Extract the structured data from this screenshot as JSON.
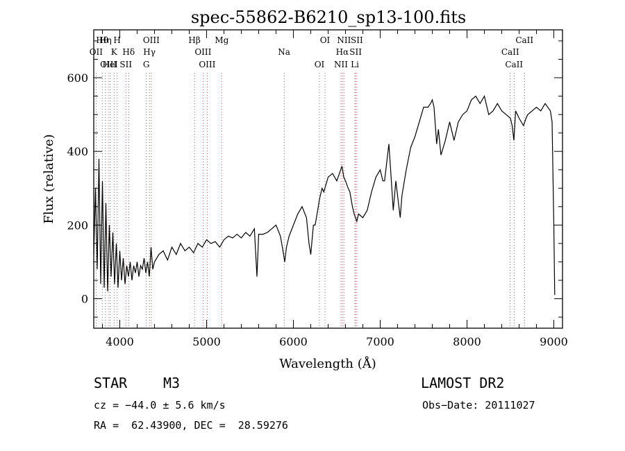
{
  "chart_data": {
    "type": "line",
    "title": "spec-55862-B6210_sp13-100.fits",
    "xlabel": "Wavelength (Å)",
    "ylabel": "Flux (relative)",
    "xlim": [
      3700,
      9100
    ],
    "ylim": [
      -80,
      730
    ],
    "xticks": [
      4000,
      5000,
      6000,
      7000,
      8000,
      9000
    ],
    "yticks": [
      0,
      200,
      400,
      600
    ],
    "grid": false,
    "series": [
      {
        "color": "#000000",
        "x": [
          3700,
          3720,
          3740,
          3760,
          3780,
          3800,
          3820,
          3840,
          3860,
          3880,
          3900,
          3920,
          3940,
          3960,
          3980,
          4000,
          4020,
          4040,
          4060,
          4080,
          4100,
          4120,
          4140,
          4160,
          4180,
          4200,
          4220,
          4240,
          4260,
          4280,
          4300,
          4320,
          4340,
          4360,
          4380,
          4400,
          4450,
          4500,
          4550,
          4600,
          4650,
          4700,
          4750,
          4800,
          4850,
          4900,
          4950,
          5000,
          5050,
          5100,
          5150,
          5200,
          5250,
          5300,
          5350,
          5400,
          5450,
          5500,
          5550,
          5580,
          5600,
          5650,
          5700,
          5750,
          5800,
          5850,
          5880,
          5900,
          5920,
          5950,
          6000,
          6050,
          6100,
          6150,
          6180,
          6200,
          6230,
          6250,
          6280,
          6300,
          6330,
          6350,
          6400,
          6450,
          6500,
          6530,
          6560,
          6580,
          6600,
          6630,
          6650,
          6680,
          6700,
          6730,
          6750,
          6800,
          6850,
          6900,
          6950,
          7000,
          7030,
          7050,
          7080,
          7100,
          7120,
          7150,
          7180,
          7200,
          7230,
          7250,
          7300,
          7350,
          7400,
          7450,
          7500,
          7550,
          7580,
          7600,
          7620,
          7650,
          7670,
          7700,
          7750,
          7800,
          7850,
          7900,
          7950,
          8000,
          8050,
          8100,
          8150,
          8200,
          8250,
          8300,
          8350,
          8400,
          8450,
          8500,
          8520,
          8540,
          8560,
          8600,
          8650,
          8680,
          8700,
          8750,
          8800,
          8850,
          8900,
          8930,
          8960,
          8980,
          9000,
          9010
        ],
        "values": [
          120,
          300,
          80,
          380,
          40,
          320,
          30,
          260,
          20,
          200,
          60,
          180,
          40,
          150,
          30,
          130,
          50,
          110,
          40,
          90,
          60,
          100,
          50,
          90,
          70,
          100,
          60,
          90,
          80,
          110,
          70,
          100,
          60,
          140,
          80,
          100,
          120,
          130,
          105,
          140,
          120,
          150,
          130,
          140,
          125,
          150,
          140,
          160,
          150,
          155,
          140,
          160,
          170,
          165,
          175,
          165,
          180,
          170,
          190,
          60,
          175,
          175,
          180,
          190,
          200,
          170,
          130,
          100,
          140,
          170,
          200,
          230,
          250,
          220,
          150,
          120,
          200,
          200,
          240,
          270,
          300,
          290,
          330,
          340,
          320,
          340,
          360,
          330,
          320,
          300,
          290,
          250,
          230,
          210,
          230,
          220,
          240,
          290,
          330,
          350,
          320,
          320,
          380,
          420,
          350,
          240,
          320,
          280,
          220,
          280,
          350,
          410,
          440,
          480,
          520,
          520,
          530,
          540,
          520,
          420,
          460,
          390,
          430,
          480,
          430,
          480,
          500,
          510,
          540,
          550,
          530,
          550,
          500,
          510,
          530,
          510,
          500,
          490,
          470,
          430,
          510,
          490,
          470,
          490,
          500,
          510,
          520,
          510,
          530,
          520,
          510,
          480,
          200,
          10
        ]
      }
    ],
    "lines": [
      {
        "name": "Hθ",
        "wl": 3798
      },
      {
        "name": "OII",
        "wl": 3727
      },
      {
        "name": "OIII",
        "wl": 3869
      },
      {
        "name": "Hη",
        "wl": 3835
      },
      {
        "name": "K",
        "wl": 3934
      },
      {
        "name": "HeI",
        "wl": 3889
      },
      {
        "name": "H",
        "wl": 3969
      },
      {
        "name": "Hδ",
        "wl": 4102
      },
      {
        "name": "SII",
        "wl": 4070
      },
      {
        "name": "OIII",
        "wl": 4363
      },
      {
        "name": "Hγ",
        "wl": 4341
      },
      {
        "name": "G",
        "wl": 4305
      },
      {
        "name": "Hβ",
        "wl": 4861
      },
      {
        "name": "OIII",
        "wl": 4959
      },
      {
        "name": "OIII",
        "wl": 5007
      },
      {
        "name": "Mg",
        "wl": 5175
      },
      {
        "name": "Na",
        "wl": 5893
      },
      {
        "name": "OI",
        "wl": 6300
      },
      {
        "name": "OI",
        "wl": 6364
      },
      {
        "name": "Hα",
        "wl": 6563
      },
      {
        "name": "NII",
        "wl": 6548
      },
      {
        "name": "NII",
        "wl": 6583
      },
      {
        "name": "SII",
        "wl": 6717
      },
      {
        "name": "Li",
        "wl": 6708
      },
      {
        "name": "SII",
        "wl": 6731
      },
      {
        "name": "CaII",
        "wl": 8498
      },
      {
        "name": "CaII",
        "wl": 8542
      },
      {
        "name": "CaII",
        "wl": 8662
      }
    ]
  },
  "info": {
    "class": "STAR",
    "subclass": "M3",
    "survey": "LAMOST DR2",
    "cz": "cz = −44.0 ± 5.6 km/s",
    "obsdate": "Obs−Date: 20111027",
    "coords": "RA =  62.43900, DEC =  28.59276"
  }
}
